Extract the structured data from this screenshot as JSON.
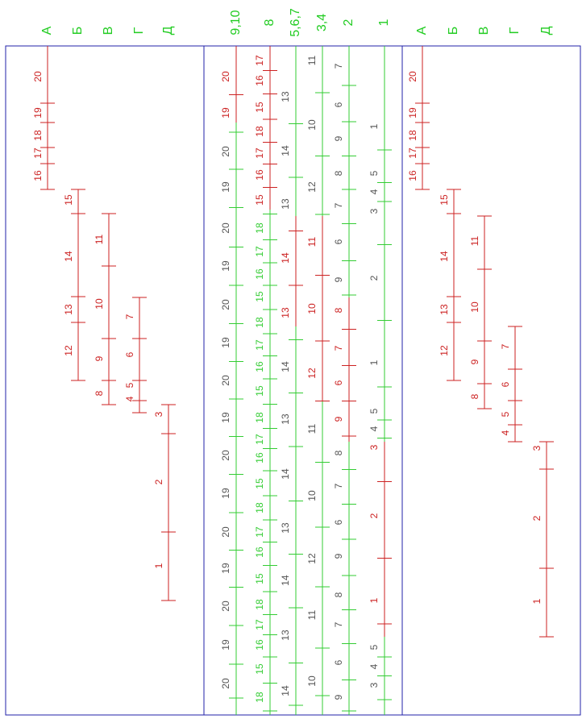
{
  "left_panel": {
    "headers": [
      "А",
      "Б",
      "В",
      "Г",
      "Д"
    ],
    "scales": [
      [
        "20",
        "19",
        "18",
        "17",
        "16"
      ],
      [
        "15",
        "14",
        "13",
        "12"
      ],
      [
        "11",
        "10",
        "9",
        "8"
      ],
      [
        "7",
        "6",
        "5",
        "4"
      ],
      [
        "3",
        "2",
        "1"
      ]
    ]
  },
  "middle_panel": {
    "headers": [
      "9,10",
      "8",
      "5,6,7",
      "3,4",
      "2",
      "1"
    ],
    "scales": [
      [
        "20",
        "19",
        "20",
        "19",
        "20",
        "19",
        "20",
        "19",
        "20",
        "19",
        "20",
        "19",
        "20",
        "19",
        "20",
        "19",
        "20"
      ],
      [
        "17",
        "16",
        "15",
        "18",
        "17",
        "16",
        "15",
        "18",
        "17",
        "16",
        "15",
        "18",
        "17",
        "16",
        "15",
        "18",
        "17",
        "16",
        "15",
        "18",
        "17",
        "16",
        "15",
        "18",
        "17",
        "16",
        "15",
        "18"
      ],
      [
        "13",
        "14",
        "13",
        "14",
        "13",
        "14",
        "13",
        "14",
        "13",
        "14",
        "13",
        "14"
      ],
      [
        "11",
        "10",
        "12",
        "11",
        "10",
        "12",
        "11",
        "10",
        "12",
        "11",
        "10"
      ],
      [
        "7",
        "6",
        "9",
        "8",
        "7",
        "6",
        "9",
        "8",
        "7",
        "6",
        "9",
        "8",
        "7",
        "6",
        "9",
        "8",
        "7",
        "6",
        "9"
      ],
      [
        "1",
        "5",
        "4",
        "3",
        "2",
        "1",
        "5",
        "4",
        "3",
        "2",
        "1",
        "5",
        "4",
        "3"
      ]
    ]
  },
  "right_panel": {
    "headers": [
      "А",
      "Б",
      "В",
      "Г",
      "Д"
    ],
    "scales": [
      [
        "20",
        "19",
        "18",
        "17",
        "16"
      ],
      [
        "15",
        "14",
        "13",
        "12"
      ],
      [
        "11",
        "10",
        "9",
        "8"
      ],
      [
        "7",
        "6",
        "5",
        "4"
      ],
      [
        "3",
        "2",
        "1"
      ]
    ]
  }
}
